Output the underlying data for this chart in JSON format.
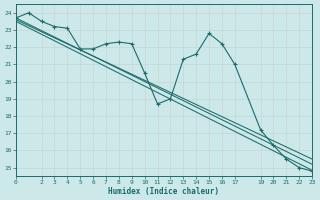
{
  "xlabel": "Humidex (Indice chaleur)",
  "background_color": "#cde8e8",
  "grid_color": "#c8d8d8",
  "line_color": "#1a6b6b",
  "xlim": [
    0,
    23
  ],
  "ylim": [
    14.5,
    24.5
  ],
  "yticks": [
    15,
    16,
    17,
    18,
    19,
    20,
    21,
    22,
    23,
    24
  ],
  "xticks": [
    0,
    2,
    3,
    4,
    5,
    6,
    7,
    8,
    9,
    10,
    11,
    12,
    13,
    14,
    15,
    16,
    17,
    19,
    20,
    21,
    22,
    23
  ],
  "series1_x": [
    0,
    1,
    2,
    3,
    4,
    5,
    6,
    7,
    8,
    9,
    10,
    11,
    12,
    13,
    14,
    15,
    16,
    17,
    19,
    20,
    21,
    22,
    23
  ],
  "series1_y": [
    23.7,
    24.0,
    23.5,
    23.2,
    23.1,
    21.9,
    21.9,
    22.2,
    22.3,
    22.2,
    20.5,
    18.7,
    19.0,
    21.3,
    21.6,
    22.8,
    22.2,
    21.0,
    17.2,
    16.3,
    15.5,
    15.0,
    14.8
  ],
  "regression_lines": [
    {
      "x": [
        0,
        23
      ],
      "y": [
        23.7,
        15.2
      ]
    },
    {
      "x": [
        0,
        23
      ],
      "y": [
        23.6,
        15.5
      ]
    },
    {
      "x": [
        0,
        23
      ],
      "y": [
        23.5,
        14.85
      ]
    }
  ]
}
